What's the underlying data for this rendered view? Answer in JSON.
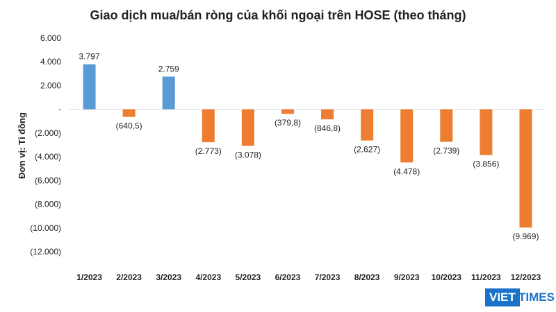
{
  "chart_data": {
    "type": "bar",
    "title": "Giao dịch mua/bán ròng của khối ngoại trên HOSE (theo tháng)",
    "ylabel": "Đơn vị: Tỉ đồng",
    "xlabel": "",
    "categories": [
      "1/2023",
      "2/2023",
      "3/2023",
      "4/2023",
      "5/2023",
      "6/2023",
      "7/2023",
      "8/2023",
      "9/2023",
      "10/2023",
      "11/2023",
      "12/2023"
    ],
    "values": [
      3797,
      -640.5,
      2759,
      -2773,
      -3078,
      -379.8,
      -846.8,
      -2627,
      -4478,
      -2739,
      -3856,
      -9969
    ],
    "data_labels": [
      "3.797",
      "(640,5)",
      "2.759",
      "(2.773)",
      "(3.078)",
      "(379,8)",
      "(846,8)",
      "(2.627)",
      "(4.478)",
      "(2.739)",
      "(3.856)",
      "(9.969)"
    ],
    "ylim": [
      -12000,
      6000
    ],
    "yticks": [
      6000,
      4000,
      2000,
      0,
      -2000,
      -4000,
      -6000,
      -8000,
      -10000,
      -12000
    ],
    "ytick_labels": [
      "6.000",
      "4.000",
      "2.000",
      "-",
      "(2.000)",
      "(4.000)",
      "(6.000)",
      "(8.000)",
      "(10.000)",
      "(12.000)"
    ],
    "grid": false,
    "legend": "none",
    "colors": {
      "positive": "#5b9bd5",
      "negative": "#ed7d31"
    }
  },
  "logo": {
    "part1": "VIET",
    "part2": "TIMES"
  }
}
